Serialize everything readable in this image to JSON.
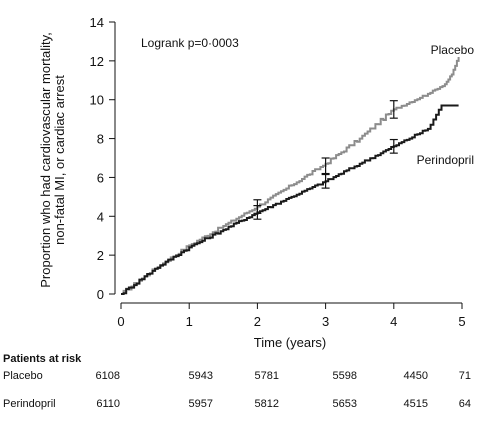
{
  "chart_data": {
    "type": "line",
    "title": "",
    "xlabel": "Time (years)",
    "ylabel_lines": [
      "Proportion who had cardiovascular mortality,",
      "non-fatal MI, or cardiac arrest"
    ],
    "xlim": [
      0,
      5
    ],
    "ylim": [
      0,
      14
    ],
    "x_ticks": [
      "0",
      "1",
      "2",
      "3",
      "4",
      "5"
    ],
    "y_ticks": [
      "0",
      "2",
      "4",
      "6",
      "8",
      "10",
      "12",
      "14"
    ],
    "grid": false,
    "annotation": "Logrank p=0·0003",
    "series": [
      {
        "name": "Placebo",
        "color": "#8c8c8c",
        "x": [
          0,
          0.5,
          1,
          1.5,
          2,
          2.5,
          3,
          3.5,
          4,
          4.5,
          4.75,
          4.85,
          4.95
        ],
        "y": [
          0,
          1.3,
          2.5,
          3.5,
          4.5,
          5.6,
          6.7,
          8.0,
          9.5,
          10.3,
          10.8,
          11.3,
          12.2
        ],
        "error_bars": [
          {
            "x": 2,
            "y": 4.5,
            "err": 0.35
          },
          {
            "x": 3,
            "y": 6.6,
            "err": 0.4
          },
          {
            "x": 4,
            "y": 9.5,
            "err": 0.45
          }
        ]
      },
      {
        "name": "Perindopril",
        "color": "#1a1a1a",
        "x": [
          0,
          0.5,
          1,
          1.5,
          2,
          2.5,
          3,
          3.5,
          4,
          4.5,
          4.7,
          4.95
        ],
        "y": [
          0,
          1.3,
          2.4,
          3.3,
          4.2,
          5.0,
          5.8,
          6.7,
          7.6,
          8.5,
          9.7,
          9.7
        ],
        "error_bars": [
          {
            "x": 2,
            "y": 4.2,
            "err": 0.35
          },
          {
            "x": 3,
            "y": 5.8,
            "err": 0.35
          },
          {
            "x": 4,
            "y": 7.6,
            "err": 0.35
          }
        ]
      }
    ]
  },
  "risk_table": {
    "title": "Patients at risk",
    "rows": [
      {
        "name": "Placebo",
        "values": [
          "6108",
          "5943",
          "5781",
          "5598",
          "4450",
          "71"
        ]
      },
      {
        "name": "Perindopril",
        "values": [
          "6110",
          "5957",
          "5812",
          "5653",
          "4515",
          "64"
        ]
      }
    ]
  }
}
